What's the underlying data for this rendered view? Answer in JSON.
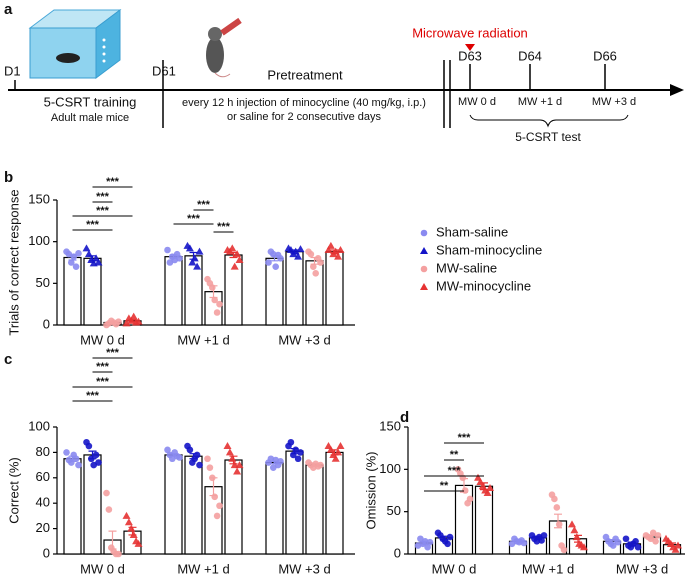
{
  "timeline": {
    "panel_label": "a",
    "days": [
      "D1",
      "D61",
      "D63",
      "D64",
      "D66"
    ],
    "event": "Microwave radiation",
    "phase": "Pretreatment",
    "training": "5-CSRT training",
    "subjects": "Adult male mice",
    "treatment_line1": "every 12 h injection of minocycline (40 mg/kg, i.p.)",
    "treatment_line2": "or saline for 2 consecutive days",
    "test_points": [
      "MW 0 d",
      "MW +1 d",
      "MW +3 d"
    ],
    "test": "5-CSRT test"
  },
  "chart_data": [
    {
      "type": "bar",
      "panel_label": "b",
      "y_label": "Trials of correct response",
      "categories": [
        "MW 0 d",
        "MW +1 d",
        "MW +3 d"
      ],
      "ylim": [
        0,
        150
      ],
      "yticks": [
        0,
        50,
        100,
        150
      ],
      "legend": "right",
      "significance_labels": [
        "***",
        "***",
        "***",
        "***",
        "***",
        "***",
        "***"
      ],
      "series": [
        {
          "name": "Sham-saline",
          "color": "#8a8af0",
          "marker": "circle",
          "values": [
            81,
            82,
            80
          ],
          "errors": [
            3,
            2,
            3
          ],
          "points": [
            [
              88,
              85,
              75,
              82,
              70,
              86
            ],
            [
              90,
              75,
              82,
              78,
              85,
              80
            ],
            [
              75,
              88,
              85,
              70,
              84,
              80
            ]
          ]
        },
        {
          "name": "Sham-minocycline",
          "color": "#1414c8",
          "marker": "triangle",
          "values": [
            80,
            83,
            88
          ],
          "errors": [
            3,
            4,
            2
          ],
          "points": [
            [
              92,
              85,
              78,
              74,
              80,
              75
            ],
            [
              95,
              92,
              75,
              80,
              70,
              88
            ],
            [
              92,
              90,
              85,
              88,
              82,
              91
            ]
          ]
        },
        {
          "name": "MW-saline",
          "color": "#f4a0a0",
          "marker": "circle",
          "values": [
            3,
            40,
            77
          ],
          "errors": [
            1,
            7,
            4
          ],
          "points": [
            [
              0,
              2,
              5,
              3,
              1,
              4
            ],
            [
              55,
              50,
              45,
              30,
              15,
              25
            ],
            [
              88,
              85,
              70,
              62,
              80,
              75
            ]
          ]
        },
        {
          "name": "MW-minocycline",
          "color": "#e63232",
          "marker": "triangle",
          "values": [
            5,
            84,
            88
          ],
          "errors": [
            1,
            3,
            2
          ],
          "points": [
            [
              2,
              8,
              5,
              10,
              3,
              4
            ],
            [
              90,
              88,
              92,
              70,
              85,
              78
            ],
            [
              90,
              95,
              85,
              88,
              82,
              90
            ]
          ]
        }
      ]
    },
    {
      "type": "bar",
      "panel_label": "c",
      "y_label": "Correct (%)",
      "categories": [
        "MW 0 d",
        "MW +1 d",
        "MW +3 d"
      ],
      "ylim": [
        0,
        100
      ],
      "yticks": [
        0,
        20,
        40,
        60,
        80,
        100
      ],
      "significance_labels": [
        "***",
        "***",
        "***",
        "***"
      ],
      "series": [
        {
          "color": "#8a8af0",
          "marker": "circle",
          "values": [
            75,
            78,
            72
          ],
          "errors": [
            2,
            1,
            1
          ],
          "points": [
            [
              80,
              74,
              72,
              78,
              75,
              70
            ],
            [
              82,
              78,
              75,
              80,
              77,
              76
            ],
            [
              72,
              75,
              68,
              74,
              70,
              73
            ]
          ]
        },
        {
          "color": "#1414c8",
          "marker": "circle",
          "values": [
            78,
            77,
            81
          ],
          "errors": [
            3,
            2,
            2
          ],
          "points": [
            [
              88,
              85,
              75,
              70,
              78,
              72
            ],
            [
              85,
              82,
              72,
              75,
              78,
              70
            ],
            [
              85,
              88,
              78,
              82,
              75,
              80
            ]
          ]
        },
        {
          "color": "#f4a0a0",
          "marker": "circle",
          "values": [
            11,
            53,
            70
          ],
          "errors": [
            7,
            7,
            1
          ],
          "points": [
            [
              48,
              35,
              5,
              2,
              0,
              0
            ],
            [
              75,
              68,
              60,
              45,
              30,
              38
            ],
            [
              72,
              70,
              68,
              71,
              69,
              70
            ]
          ]
        },
        {
          "color": "#e63232",
          "marker": "triangle",
          "values": [
            18,
            74,
            80
          ],
          "errors": [
            3,
            3,
            2
          ],
          "points": [
            [
              30,
              25,
              20,
              15,
              10,
              8
            ],
            [
              85,
              80,
              75,
              70,
              65,
              70
            ],
            [
              85,
              82,
              78,
              75,
              80,
              85
            ]
          ]
        }
      ]
    },
    {
      "type": "bar",
      "panel_label": "d",
      "y_label": "Omission (%)",
      "categories": [
        "MW 0 d",
        "MW +1 d",
        "MW +3 d"
      ],
      "ylim": [
        0,
        150
      ],
      "yticks": [
        0,
        50,
        100,
        150
      ],
      "significance_labels": [
        "***",
        "**",
        "***",
        "**"
      ],
      "series": [
        {
          "color": "#8a8af0",
          "marker": "circle",
          "values": [
            13,
            15,
            15
          ],
          "errors": [
            2,
            2,
            2
          ],
          "points": [
            [
              10,
              18,
              12,
              15,
              8,
              14
            ],
            [
              12,
              18,
              15,
              14,
              16,
              13
            ],
            [
              20,
              15,
              12,
              10,
              18,
              14
            ]
          ]
        },
        {
          "color": "#1414c8",
          "marker": "circle",
          "values": [
            19,
            19,
            12
          ],
          "errors": [
            2,
            2,
            2
          ],
          "points": [
            [
              25,
              22,
              18,
              15,
              12,
              20
            ],
            [
              22,
              18,
              15,
              20,
              16,
              22
            ],
            [
              18,
              10,
              8,
              12,
              15,
              8
            ]
          ]
        },
        {
          "color": "#f4a0a0",
          "marker": "circle",
          "values": [
            81,
            39,
            20
          ],
          "errors": [
            8,
            8,
            2
          ],
          "points": [
            [
              100,
              95,
              90,
              75,
              60,
              65
            ],
            [
              70,
              65,
              55,
              35,
              10,
              5
            ],
            [
              22,
              20,
              18,
              25,
              15,
              22
            ]
          ]
        },
        {
          "color": "#e63232",
          "marker": "triangle",
          "values": [
            80,
            18,
            11
          ],
          "errors": [
            4,
            4,
            2
          ],
          "points": [
            [
              90,
              85,
              80,
              75,
              72,
              78
            ],
            [
              35,
              28,
              20,
              12,
              10,
              8
            ],
            [
              18,
              15,
              12,
              8,
              5,
              10
            ]
          ]
        }
      ]
    }
  ]
}
